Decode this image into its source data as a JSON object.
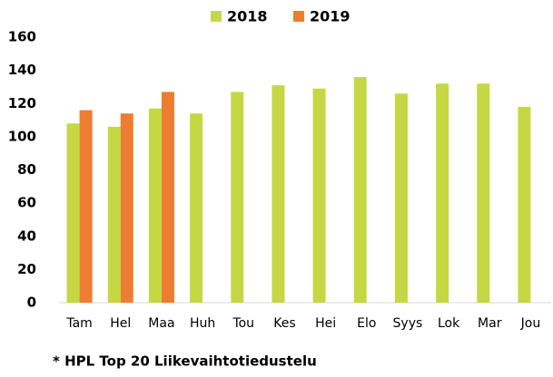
{
  "chart_data": {
    "type": "bar",
    "categories": [
      "Tam",
      "Hel",
      "Maa",
      "Huh",
      "Tou",
      "Kes",
      "Hei",
      "Elo",
      "Syys",
      "Lok",
      "Mar",
      "Jou"
    ],
    "series": [
      {
        "name": "2018",
        "color": "#c5d843",
        "values": [
          108,
          106,
          117,
          114,
          127,
          131,
          129,
          136,
          126,
          132,
          132,
          118
        ]
      },
      {
        "name": "2019",
        "color": "#ed7d31",
        "values": [
          116,
          114,
          127,
          null,
          null,
          null,
          null,
          null,
          null,
          null,
          null,
          null
        ]
      }
    ],
    "ylim": [
      0,
      160
    ],
    "yticks": [
      0,
      20,
      40,
      60,
      80,
      100,
      120,
      140,
      160
    ],
    "grid": false,
    "legend": "top",
    "annotation": "* HPL Top 20 Liikevaihtotiedustelu"
  }
}
